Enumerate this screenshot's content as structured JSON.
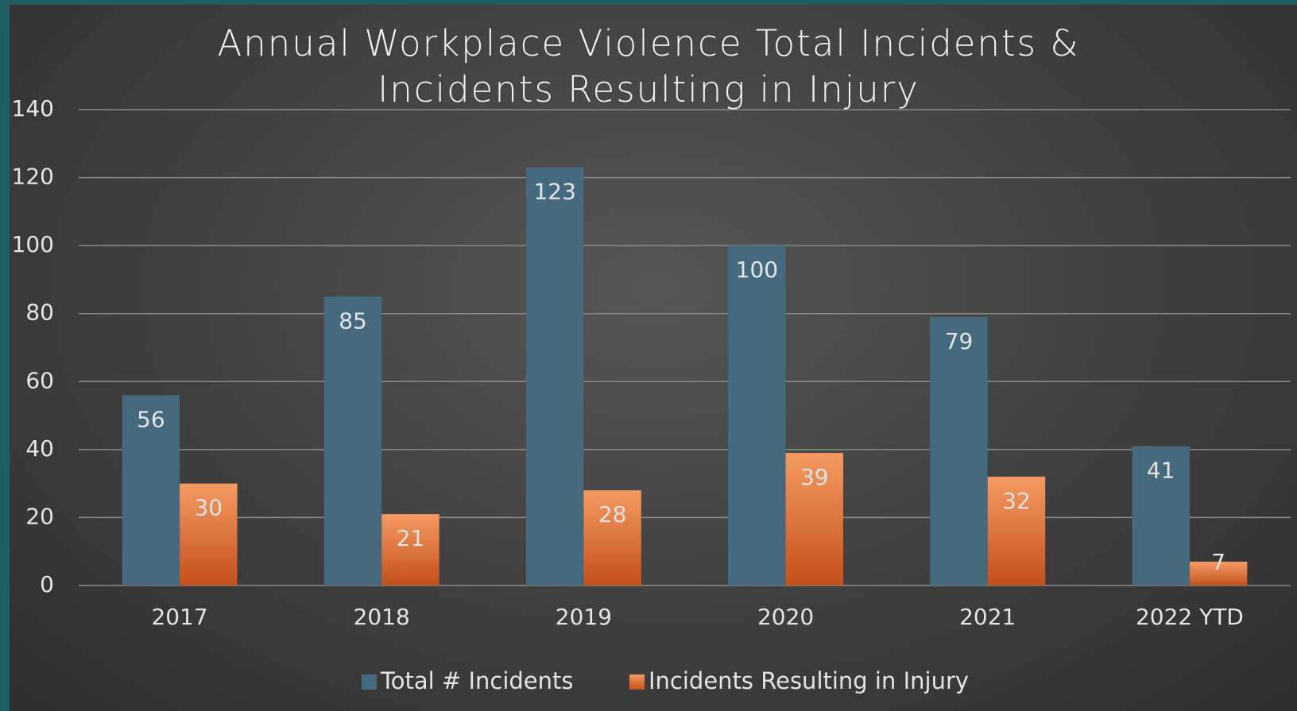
{
  "chart_data": {
    "type": "bar",
    "title": "Annual Workplace Violence Total Incidents & Incidents Resulting in Injury",
    "categories": [
      "2017",
      "2018",
      "2019",
      "2020",
      "2021",
      "2022 YTD"
    ],
    "series": [
      {
        "name": "Total # Incidents",
        "color": "#456a7e",
        "values": [
          56,
          85,
          123,
          100,
          79,
          41
        ]
      },
      {
        "name": "Incidents Resulting in Injury",
        "color": "#e8773a",
        "values": [
          30,
          21,
          28,
          39,
          32,
          7
        ]
      }
    ],
    "ylim": [
      0,
      140
    ],
    "yticks": [
      0,
      20,
      40,
      60,
      80,
      100,
      120,
      140
    ],
    "grid": true,
    "legend": "bottom"
  }
}
